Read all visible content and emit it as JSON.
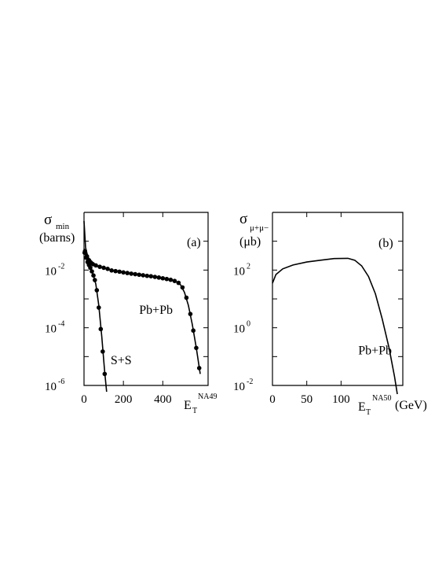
{
  "chart_data": [
    {
      "type": "scatter",
      "panel_label": "(a)",
      "ylabel_symbol": "σ",
      "ylabel_subscript": "min",
      "ylabel_unit": "(barns)",
      "xlabel_symbol": "E",
      "xlabel_subscript": "T",
      "xlabel_superscript": "NA49",
      "xlabel_unit": "",
      "xlim": [
        0,
        630
      ],
      "ylim": [
        1e-06,
        1
      ],
      "yscale": "log",
      "x_ticks": [
        0,
        200,
        400
      ],
      "y_ticks": [
        {
          "value": 0.01,
          "mantissa": "10",
          "exponent": "-2"
        },
        {
          "value": 0.0001,
          "mantissa": "10",
          "exponent": "-4"
        },
        {
          "value": 1e-06,
          "mantissa": "10",
          "exponent": "-6"
        }
      ],
      "series": [
        {
          "label": "Pb+Pb",
          "label_at": [
            280,
            0.0003
          ],
          "points": [
            [
              5,
              0.045
            ],
            [
              15,
              0.03
            ],
            [
              25,
              0.022
            ],
            [
              35,
              0.018
            ],
            [
              45,
              0.016
            ],
            [
              60,
              0.0145
            ],
            [
              80,
              0.013
            ],
            [
              100,
              0.012
            ],
            [
              120,
              0.011
            ],
            [
              140,
              0.0097
            ],
            [
              160,
              0.0092
            ],
            [
              180,
              0.0088
            ],
            [
              200,
              0.0083
            ],
            [
              220,
              0.0079
            ],
            [
              240,
              0.0075
            ],
            [
              260,
              0.0072
            ],
            [
              280,
              0.0069
            ],
            [
              300,
              0.0066
            ],
            [
              320,
              0.0063
            ],
            [
              340,
              0.0061
            ],
            [
              360,
              0.0058
            ],
            [
              380,
              0.0055
            ],
            [
              400,
              0.0052
            ],
            [
              420,
              0.0049
            ],
            [
              440,
              0.0046
            ],
            [
              460,
              0.0042
            ],
            [
              480,
              0.0036
            ],
            [
              500,
              0.0025
            ],
            [
              520,
              0.0011
            ],
            [
              540,
              0.0003
            ],
            [
              555,
              8e-05
            ],
            [
              570,
              2e-05
            ],
            [
              585,
              4e-06
            ]
          ],
          "curve": [
            [
              0,
              0.5
            ],
            [
              8,
              0.06
            ],
            [
              20,
              0.028
            ],
            [
              40,
              0.017
            ],
            [
              70,
              0.0135
            ],
            [
              120,
              0.0108
            ],
            [
              200,
              0.0082
            ],
            [
              300,
              0.0066
            ],
            [
              400,
              0.0052
            ],
            [
              460,
              0.0043
            ],
            [
              490,
              0.0031
            ],
            [
              510,
              0.0017
            ],
            [
              530,
              0.0006
            ],
            [
              550,
              0.00013
            ],
            [
              570,
              2e-05
            ],
            [
              590,
              2.5e-06
            ]
          ],
          "curve2": [
            [
              0,
              0.055
            ],
            [
              10,
              0.04
            ],
            [
              25,
              0.025
            ],
            [
              50,
              0.017
            ]
          ]
        },
        {
          "label": "S+S",
          "label_at": [
            135,
            5.5e-06
          ],
          "points": [
            [
              3,
              0.04
            ],
            [
              10,
              0.027
            ],
            [
              18,
              0.019
            ],
            [
              25,
              0.015
            ],
            [
              32,
              0.012
            ],
            [
              40,
              0.009
            ],
            [
              48,
              0.0065
            ],
            [
              55,
              0.0045
            ],
            [
              65,
              0.002
            ],
            [
              75,
              0.0005
            ],
            [
              85,
              9e-05
            ],
            [
              95,
              1.5e-05
            ],
            [
              105,
              2.5e-06
            ]
          ],
          "curve": [
            [
              0,
              0.05
            ],
            [
              15,
              0.022
            ],
            [
              30,
              0.013
            ],
            [
              45,
              0.0075
            ],
            [
              60,
              0.0033
            ],
            [
              75,
              0.0006
            ],
            [
              90,
              5e-05
            ],
            [
              105,
              3e-06
            ],
            [
              115,
              6e-07
            ]
          ]
        }
      ]
    },
    {
      "type": "line",
      "panel_label": "(b)",
      "ylabel_symbol": "σ",
      "ylabel_subscript": "μ+μ−",
      "ylabel_unit": "(μb)",
      "xlabel_symbol": "E",
      "xlabel_subscript": "T",
      "xlabel_superscript": "NA50",
      "xlabel_unit": "(GeV)",
      "xlim": [
        0,
        190
      ],
      "ylim": [
        0.01,
        10000
      ],
      "yscale": "log",
      "x_ticks": [
        0,
        50,
        100
      ],
      "y_ticks": [
        {
          "value": 100,
          "mantissa": "10",
          "exponent": "2"
        },
        {
          "value": 1,
          "mantissa": "10",
          "exponent": "0"
        },
        {
          "value": 0.01,
          "mantissa": "10",
          "exponent": "-2"
        }
      ],
      "series": [
        {
          "label": "Pb+Pb",
          "label_at": [
            125,
            0.12
          ],
          "curve": [
            [
              0,
              35
            ],
            [
              5,
              70
            ],
            [
              15,
              110
            ],
            [
              30,
              150
            ],
            [
              50,
              190
            ],
            [
              70,
              220
            ],
            [
              90,
              250
            ],
            [
              110,
              255
            ],
            [
              120,
              220
            ],
            [
              130,
              140
            ],
            [
              140,
              60
            ],
            [
              150,
              15
            ],
            [
              160,
              2
            ],
            [
              170,
              0.2
            ],
            [
              178,
              0.02
            ],
            [
              182,
              0.005
            ]
          ]
        }
      ]
    }
  ]
}
